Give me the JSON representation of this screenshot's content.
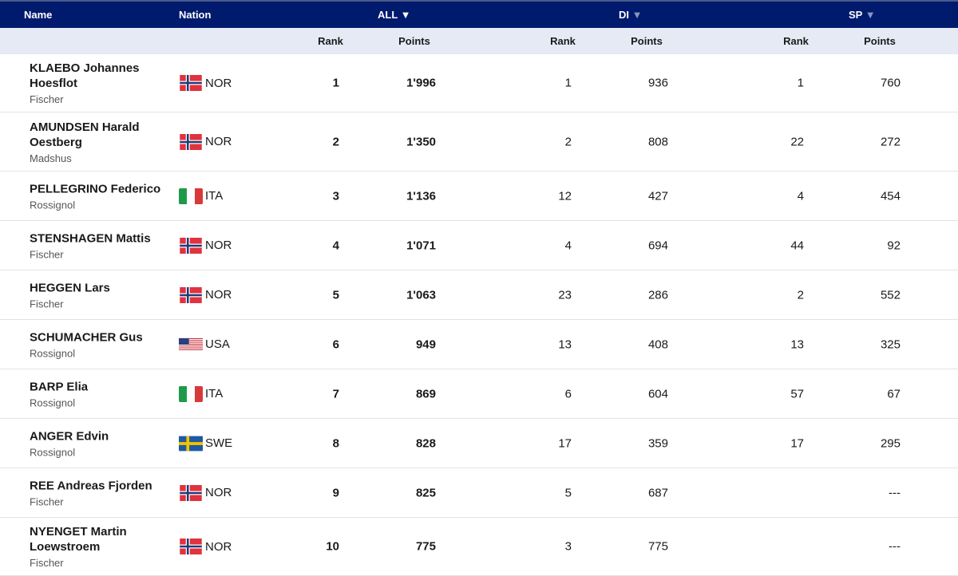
{
  "header": {
    "name": "Name",
    "nation": "Nation",
    "all": "ALL ▼",
    "di": "DI",
    "sp": "SP",
    "dim_arrow": "▼"
  },
  "subheader": {
    "rank": "Rank",
    "points": "Points"
  },
  "colors": {
    "header_bg": "#001a6e",
    "subheader_bg": "#e6eaf5"
  },
  "rows": [
    {
      "name": "KLAEBO Johannes Hoesflot",
      "brand": "Fischer",
      "flag": "NOR",
      "nation": "NOR",
      "all_rank": "1",
      "all_points": "1'996",
      "di_rank": "1",
      "di_points": "936",
      "sp_rank": "1",
      "sp_points": "760"
    },
    {
      "name": "AMUNDSEN Harald Oestberg",
      "brand": "Madshus",
      "flag": "NOR",
      "nation": "NOR",
      "all_rank": "2",
      "all_points": "1'350",
      "di_rank": "2",
      "di_points": "808",
      "sp_rank": "22",
      "sp_points": "272"
    },
    {
      "name": "PELLEGRINO Federico",
      "brand": "Rossignol",
      "flag": "ITA",
      "nation": "ITA",
      "all_rank": "3",
      "all_points": "1'136",
      "di_rank": "12",
      "di_points": "427",
      "sp_rank": "4",
      "sp_points": "454"
    },
    {
      "name": "STENSHAGEN Mattis",
      "brand": "Fischer",
      "flag": "NOR",
      "nation": "NOR",
      "all_rank": "4",
      "all_points": "1'071",
      "di_rank": "4",
      "di_points": "694",
      "sp_rank": "44",
      "sp_points": "92"
    },
    {
      "name": "HEGGEN Lars",
      "brand": "Fischer",
      "flag": "NOR",
      "nation": "NOR",
      "all_rank": "5",
      "all_points": "1'063",
      "di_rank": "23",
      "di_points": "286",
      "sp_rank": "2",
      "sp_points": "552"
    },
    {
      "name": "SCHUMACHER Gus",
      "brand": "Rossignol",
      "flag": "USA",
      "nation": "USA",
      "all_rank": "6",
      "all_points": "949",
      "di_rank": "13",
      "di_points": "408",
      "sp_rank": "13",
      "sp_points": "325"
    },
    {
      "name": "BARP Elia",
      "brand": "Rossignol",
      "flag": "ITA",
      "nation": "ITA",
      "all_rank": "7",
      "all_points": "869",
      "di_rank": "6",
      "di_points": "604",
      "sp_rank": "57",
      "sp_points": "67"
    },
    {
      "name": "ANGER Edvin",
      "brand": "Rossignol",
      "flag": "SWE",
      "nation": "SWE",
      "all_rank": "8",
      "all_points": "828",
      "di_rank": "17",
      "di_points": "359",
      "sp_rank": "17",
      "sp_points": "295"
    },
    {
      "name": "REE Andreas Fjorden",
      "brand": "Fischer",
      "flag": "NOR",
      "nation": "NOR",
      "all_rank": "9",
      "all_points": "825",
      "di_rank": "5",
      "di_points": "687",
      "sp_rank": "",
      "sp_points": "---"
    },
    {
      "name": "NYENGET Martin Loewstroem",
      "brand": "Fischer",
      "flag": "NOR",
      "nation": "NOR",
      "all_rank": "10",
      "all_points": "775",
      "di_rank": "3",
      "di_points": "775",
      "sp_rank": "",
      "sp_points": "---"
    }
  ]
}
